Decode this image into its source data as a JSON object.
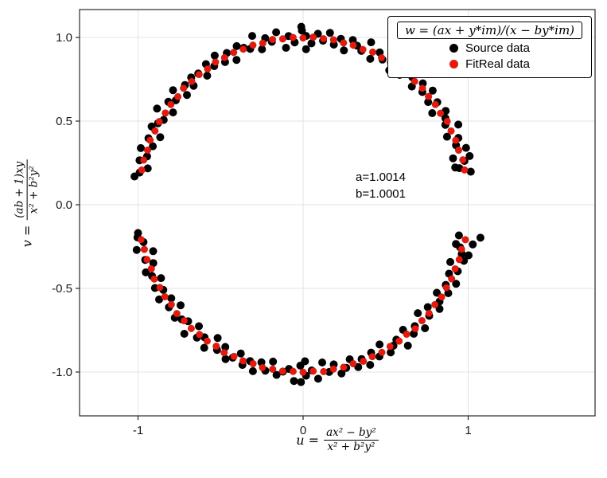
{
  "figure": {
    "legend": {
      "title": "w = (ax + y*im)/(x − by*im)",
      "entries": [
        {
          "label": "Source data",
          "color": "#000000"
        },
        {
          "label": "FitReal data",
          "color": "#e8190c"
        }
      ]
    },
    "annotation": {
      "line1": "a=1.0014",
      "line2": "b=1.0001"
    },
    "xlabel": {
      "prefix": "u =",
      "numerator": "ax² − by²",
      "denominator": "x² + b²y²"
    },
    "ylabel": {
      "prefix": "v =",
      "numerator": "(ab + 1)xy",
      "denominator": "x² + b²y²"
    }
  },
  "chart_data": {
    "type": "scatter",
    "title": "",
    "xlabel": "u = (ax² − by²)/(x² + b²y²)",
    "ylabel": "v = ((ab + 1)xy)/(x² + b²y²)",
    "legend_title": "w = (ax + y*im)/(x − by*im)",
    "legend_position": "top-right",
    "annotation": {
      "a": "1.0014",
      "b": "1.0001",
      "approx_position": [
        0.32,
        0.1
      ]
    },
    "xlim": [
      -1.35,
      1.77
    ],
    "ylim": [
      -1.26,
      1.17
    ],
    "xticks": [
      -1,
      0,
      1
    ],
    "xtick_labels": [
      "-1",
      "0",
      "1"
    ],
    "yticks": [
      1.0,
      0.5,
      0.0,
      -0.5,
      -1.0
    ],
    "ytick_labels": [
      "1.0",
      "0.5",
      "0.0",
      "-0.5",
      "-1.0"
    ],
    "grid": true,
    "style": {
      "grid_color": "#e3e3e3",
      "frame_color": "#26282c",
      "tick_label_color": "#1a1a1a",
      "tick_font_px": 15
    },
    "coords": "polar_deg_r (points are [angle_deg, radius]; u=r*cos, v=r*sin; data lies on unit circle)",
    "series": [
      {
        "name": "Source data",
        "color": "#000000",
        "stroke": "none",
        "marker_px": 5,
        "data_name": "source-data-point",
        "points": [
          [
            11,
            1.035
          ],
          [
            13,
            0.972
          ],
          [
            15,
            1.012
          ],
          [
            17,
            0.95
          ],
          [
            19,
            1.044
          ],
          [
            21,
            0.992
          ],
          [
            23,
            1.022
          ],
          [
            25,
            0.962
          ],
          [
            27,
            1.055
          ],
          [
            29,
            0.985
          ],
          [
            31,
            1.005
          ],
          [
            33,
            1.03
          ],
          [
            35,
            0.955
          ],
          [
            37,
            1.018
          ],
          [
            39,
            0.975
          ],
          [
            41,
            1.04
          ],
          [
            43,
            0.988
          ],
          [
            45,
            1.026
          ],
          [
            47,
            0.966
          ],
          [
            49,
            1.009
          ],
          [
            51.6,
            1.028
          ],
          [
            53,
            0.972
          ],
          [
            55,
            1.012
          ],
          [
            57,
            0.958
          ],
          [
            59,
            1.044
          ],
          [
            61,
            0.992
          ],
          [
            63,
            1.022
          ],
          [
            65,
            0.962
          ],
          [
            67,
            1.055
          ],
          [
            69,
            0.985
          ],
          [
            71,
            1.005
          ],
          [
            73,
            1.03
          ],
          [
            75,
            0.955
          ],
          [
            77,
            1.018
          ],
          [
            79,
            0.975
          ],
          [
            81,
            1.04
          ],
          [
            83,
            0.988
          ],
          [
            85,
            1.026
          ],
          [
            87,
            0.966
          ],
          [
            89,
            1.009
          ],
          [
            90.4,
            1.041
          ],
          [
            93,
            0.972
          ],
          [
            95,
            1.012
          ],
          [
            96.3,
            0.944
          ],
          [
            99,
            1.044
          ],
          [
            101,
            0.992
          ],
          [
            103,
            1.022
          ],
          [
            105,
            0.962
          ],
          [
            107,
            1.055
          ],
          [
            109,
            0.985
          ],
          [
            111,
            1.005
          ],
          [
            113,
            1.03
          ],
          [
            115,
            0.955
          ],
          [
            117,
            1.018
          ],
          [
            119,
            0.975
          ],
          [
            121,
            1.04
          ],
          [
            123,
            0.988
          ],
          [
            125,
            1.026
          ],
          [
            127,
            0.966
          ],
          [
            129,
            1.009
          ],
          [
            131.7,
            1.019
          ],
          [
            133,
            0.972
          ],
          [
            135,
            1.012
          ],
          [
            137,
            0.962
          ],
          [
            139,
            1.044
          ],
          [
            141,
            0.992
          ],
          [
            143,
            1.022
          ],
          [
            145,
            0.962
          ],
          [
            147,
            1.055
          ],
          [
            149,
            0.985
          ],
          [
            151,
            1.005
          ],
          [
            153,
            1.03
          ],
          [
            155,
            0.955
          ],
          [
            157,
            1.018
          ],
          [
            159,
            0.975
          ],
          [
            161,
            1.04
          ],
          [
            163,
            0.988
          ],
          [
            165,
            1.026
          ],
          [
            167,
            0.966
          ],
          [
            169,
            1.009
          ],
          [
            -11,
            0.962
          ],
          [
            -13,
            1.055
          ],
          [
            -15,
            0.985
          ],
          [
            -17,
            1.005
          ],
          [
            -19,
            1.03
          ],
          [
            -21,
            0.955
          ],
          [
            -23,
            1.018
          ],
          [
            -25,
            0.975
          ],
          [
            -27,
            1.04
          ],
          [
            -29,
            0.988
          ],
          [
            -31,
            1.026
          ],
          [
            -33,
            0.966
          ],
          [
            -35,
            1.009
          ],
          [
            -37,
            1.035
          ],
          [
            -39,
            0.972
          ],
          [
            -41,
            1.012
          ],
          [
            -43,
            0.95
          ],
          [
            -45,
            1.044
          ],
          [
            -47,
            0.992
          ],
          [
            -49,
            1.022
          ],
          [
            -51,
            0.962
          ],
          [
            -53,
            1.055
          ],
          [
            -55,
            0.985
          ],
          [
            -57,
            1.005
          ],
          [
            -59,
            1.03
          ],
          [
            -61,
            0.955
          ],
          [
            -63,
            1.018
          ],
          [
            -65,
            0.975
          ],
          [
            -67,
            1.04
          ],
          [
            -69,
            0.988
          ],
          [
            -71,
            1.026
          ],
          [
            -73,
            0.966
          ],
          [
            -75,
            1.009
          ],
          [
            -77,
            1.035
          ],
          [
            -79,
            0.972
          ],
          [
            -81,
            1.012
          ],
          [
            -83,
            0.95
          ],
          [
            -85,
            1.044
          ],
          [
            -87,
            0.992
          ],
          [
            -89,
            1.022
          ],
          [
            -91,
            0.962
          ],
          [
            -93,
            1.055
          ],
          [
            -95,
            0.985
          ],
          [
            -97,
            1.005
          ],
          [
            -99,
            1.03
          ],
          [
            -101,
            0.955
          ],
          [
            -103,
            1.018
          ],
          [
            -105,
            0.975
          ],
          [
            -107,
            1.04
          ],
          [
            -109,
            0.988
          ],
          [
            -111,
            1.026
          ],
          [
            -113,
            0.966
          ],
          [
            -115,
            1.009
          ],
          [
            -117,
            1.035
          ],
          [
            -119,
            0.972
          ],
          [
            -121,
            1.012
          ],
          [
            -123,
            0.95
          ],
          [
            -125,
            1.044
          ],
          [
            -127,
            0.992
          ],
          [
            -129,
            1.022
          ],
          [
            -131,
            0.962
          ],
          [
            -133,
            1.055
          ],
          [
            -135,
            0.985
          ],
          [
            -137,
            1.005
          ],
          [
            -139,
            1.03
          ],
          [
            -141,
            0.955
          ],
          [
            -143,
            1.018
          ],
          [
            -145,
            0.975
          ],
          [
            -147,
            1.04
          ],
          [
            -149,
            0.988
          ],
          [
            -151,
            1.026
          ],
          [
            -153,
            0.966
          ],
          [
            -155,
            1.009
          ],
          [
            -157,
            1.035
          ],
          [
            -159,
            0.972
          ],
          [
            -161,
            1.012
          ],
          [
            -163,
            0.95
          ],
          [
            -165,
            1.044
          ],
          [
            -167,
            0.992
          ],
          [
            -169,
            1.022
          ],
          [
            -10.4,
            1.092
          ],
          [
            170.6,
            1.035
          ],
          [
            -170.4,
            1.014
          ],
          [
            90.6,
            1.064
          ],
          [
            88.9,
            0.93
          ],
          [
            -90.7,
            1.06
          ],
          [
            -89.3,
            0.936
          ],
          [
            13.6,
            0.948
          ],
          [
            16.1,
            1.05
          ],
          [
            -14.2,
            0.955
          ],
          [
            -16.8,
            1.047
          ]
        ]
      },
      {
        "name": "FitReal data",
        "color": "#e8190c",
        "stroke": "rgba(0,0,0,0.3)",
        "stroke_width": 0.5,
        "marker_px": 4.4,
        "data_name": "fitreal-data-point",
        "points": [
          [
            12,
            1.0
          ],
          [
            15.5,
            1.004
          ],
          [
            19.1,
            0.997
          ],
          [
            22.6,
            1.002
          ],
          [
            26.2,
            0.999
          ],
          [
            29.7,
            1.005
          ],
          [
            33.3,
            0.996
          ],
          [
            36.8,
            1.001
          ],
          [
            40.4,
            0.998
          ],
          [
            43.9,
            1.003
          ],
          [
            47.5,
            1.0
          ],
          [
            51,
            1.004
          ],
          [
            54.5,
            0.997
          ],
          [
            58.1,
            1.002
          ],
          [
            61.6,
            0.999
          ],
          [
            65.2,
            1.005
          ],
          [
            68.7,
            0.996
          ],
          [
            72.3,
            1.001
          ],
          [
            75.8,
            0.998
          ],
          [
            79.4,
            1.003
          ],
          [
            82.9,
            1.0
          ],
          [
            86.5,
            1.004
          ],
          [
            90,
            0.997
          ],
          [
            93.5,
            1.002
          ],
          [
            97.1,
            0.999
          ],
          [
            100.6,
            1.005
          ],
          [
            104.2,
            0.996
          ],
          [
            107.7,
            1.001
          ],
          [
            111.3,
            0.998
          ],
          [
            114.8,
            1.003
          ],
          [
            118.4,
            1.0
          ],
          [
            121.9,
            1.004
          ],
          [
            125.5,
            0.997
          ],
          [
            129,
            1.002
          ],
          [
            132.5,
            0.999
          ],
          [
            136.1,
            1.005
          ],
          [
            139.6,
            0.996
          ],
          [
            143.2,
            1.001
          ],
          [
            146.7,
            0.998
          ],
          [
            150.3,
            1.003
          ],
          [
            153.8,
            1.0
          ],
          [
            157.4,
            1.004
          ],
          [
            160.9,
            0.997
          ],
          [
            164.5,
            1.002
          ],
          [
            168,
            0.999
          ],
          [
            -12,
            1.005
          ],
          [
            -15.5,
            0.996
          ],
          [
            -19.1,
            1.001
          ],
          [
            -22.6,
            0.998
          ],
          [
            -26.2,
            1.003
          ],
          [
            -29.7,
            1.0
          ],
          [
            -33.3,
            1.004
          ],
          [
            -36.8,
            0.997
          ],
          [
            -40.4,
            1.002
          ],
          [
            -43.9,
            0.999
          ],
          [
            -47.5,
            1.005
          ],
          [
            -51,
            0.996
          ],
          [
            -54.5,
            1.001
          ],
          [
            -58.1,
            0.998
          ],
          [
            -61.6,
            1.003
          ],
          [
            -65.2,
            1.0
          ],
          [
            -68.7,
            1.004
          ],
          [
            -72.3,
            0.997
          ],
          [
            -75.8,
            1.002
          ],
          [
            -79.4,
            0.999
          ],
          [
            -82.9,
            1.005
          ],
          [
            -86.5,
            0.996
          ],
          [
            -90,
            1.001
          ],
          [
            -93.5,
            0.998
          ],
          [
            -97.1,
            1.003
          ],
          [
            -100.6,
            1.0
          ],
          [
            -104.2,
            1.004
          ],
          [
            -107.7,
            0.997
          ],
          [
            -111.3,
            1.002
          ],
          [
            -114.8,
            0.999
          ],
          [
            -118.4,
            1.005
          ],
          [
            -121.9,
            0.996
          ],
          [
            -125.5,
            1.001
          ],
          [
            -129,
            0.998
          ],
          [
            -132.5,
            1.003
          ],
          [
            -136.1,
            1.0
          ],
          [
            -139.6,
            1.004
          ],
          [
            -143.2,
            0.997
          ],
          [
            -146.7,
            1.002
          ],
          [
            -150.3,
            0.999
          ],
          [
            -153.8,
            1.005
          ],
          [
            -157.4,
            0.996
          ],
          [
            -160.9,
            1.001
          ],
          [
            -164.5,
            0.998
          ],
          [
            -168,
            1.003
          ]
        ]
      }
    ]
  }
}
